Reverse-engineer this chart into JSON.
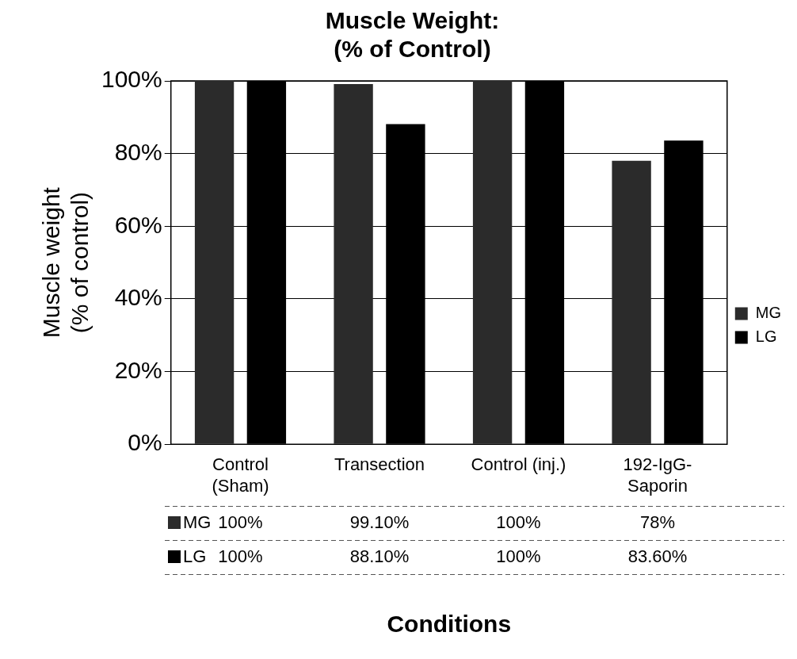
{
  "chart_data": {
    "type": "bar",
    "title": "Muscle Weight:\n(% of Control)",
    "xlabel": "Conditions",
    "ylabel": "Muscle weight\n(% of control)",
    "categories": [
      "Control\n(Sham)",
      "Transection",
      "Control (inj.)",
      "192-IgG-\nSaporin"
    ],
    "series": [
      {
        "name": "MG",
        "color": "#2b2b2b",
        "values": [
          100,
          99.1,
          100,
          78
        ],
        "value_labels": [
          "100%",
          "99.10%",
          "100%",
          "78%"
        ]
      },
      {
        "name": "LG",
        "color": "#000000",
        "values": [
          100,
          88.1,
          100,
          83.6
        ],
        "value_labels": [
          "100%",
          "88.10%",
          "100%",
          "83.60%"
        ]
      }
    ],
    "ylim": [
      0,
      100
    ],
    "yticks": [
      {
        "value": 0,
        "label": "0%"
      },
      {
        "value": 20,
        "label": "20%"
      },
      {
        "value": 40,
        "label": "40%"
      },
      {
        "value": 60,
        "label": "60%"
      },
      {
        "value": 80,
        "label": "80%"
      },
      {
        "value": 100,
        "label": "100%"
      }
    ],
    "grid": "y",
    "legend": "right"
  }
}
